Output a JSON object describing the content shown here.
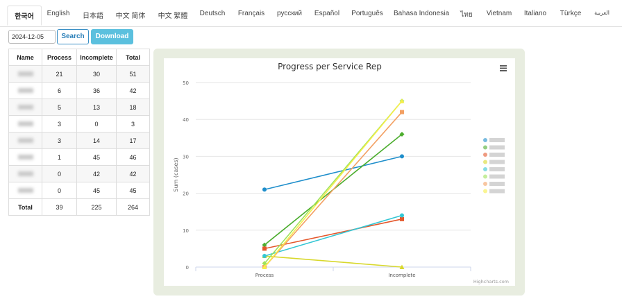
{
  "tabs": [
    "한국어",
    "English",
    "日本語",
    "中文 简体",
    "中文 繁體",
    "Deutsch",
    "Français",
    "русский",
    "Español",
    "Português",
    "Bahasa Indonesia",
    "ไทย",
    "Vietnam",
    "Italiano",
    "Türkçe",
    "العربية"
  ],
  "active_tab": 0,
  "toolbar": {
    "date": "2024-12-05",
    "search": "Search",
    "download": "Download"
  },
  "table": {
    "columns": [
      "Name",
      "Process",
      "Incomplete",
      "Total"
    ],
    "rows": [
      [
        null,
        21,
        30,
        51
      ],
      [
        null,
        6,
        36,
        42
      ],
      [
        null,
        5,
        13,
        18
      ],
      [
        null,
        3,
        0,
        3
      ],
      [
        null,
        3,
        14,
        17
      ],
      [
        null,
        1,
        45,
        46
      ],
      [
        null,
        0,
        42,
        42
      ],
      [
        null,
        0,
        45,
        45
      ]
    ],
    "footer": [
      "Total",
      39,
      225,
      264
    ]
  },
  "chart_data": {
    "type": "line",
    "title": "Progress per Service Rep",
    "y_label": "Sum (cases)",
    "credit": "Highcharts.com",
    "categories": [
      "Process",
      "Incomplete"
    ],
    "ylim": [
      0,
      50
    ],
    "yticks": [
      0,
      10,
      20,
      30,
      40,
      50
    ],
    "grid": true,
    "series": [
      {
        "color": "#1e8ecb",
        "values": [
          21,
          30
        ]
      },
      {
        "color": "#4cad2e",
        "values": [
          6,
          36
        ]
      },
      {
        "color": "#e4572b",
        "values": [
          5,
          13
        ]
      },
      {
        "color": "#d8d82c",
        "values": [
          3,
          0
        ]
      },
      {
        "color": "#33c6d4",
        "values": [
          3,
          14
        ]
      },
      {
        "color": "#9fe35b",
        "values": [
          1,
          45
        ]
      },
      {
        "color": "#f3a063",
        "values": [
          0,
          42
        ]
      },
      {
        "color": "#f7ee4a",
        "values": [
          0,
          45
        ]
      }
    ]
  }
}
